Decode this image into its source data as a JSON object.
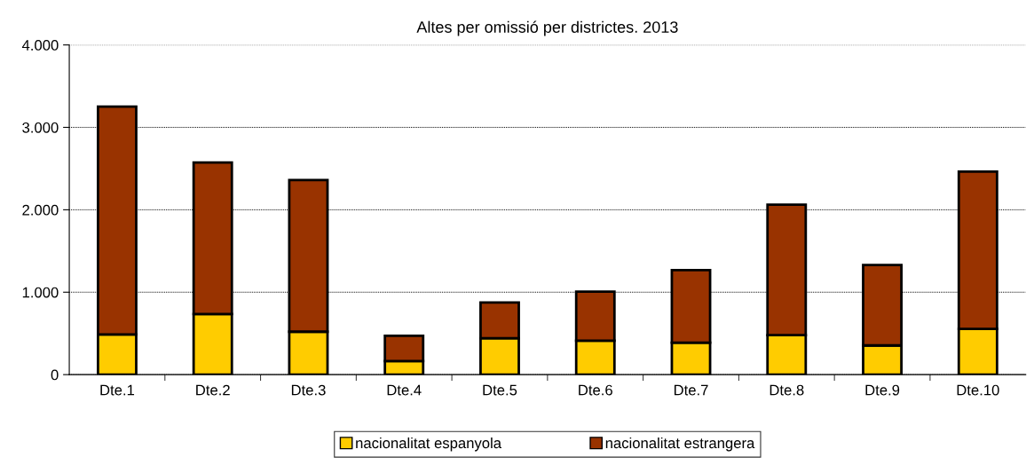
{
  "chart_data": {
    "type": "bar",
    "title": "Altes per omissió per districtes. 2013",
    "categories": [
      "Dte.1",
      "Dte.2",
      "Dte.3",
      "Dte.4",
      "Dte.5",
      "Dte.6",
      "Dte.7",
      "Dte.8",
      "Dte.9",
      "Dte.10"
    ],
    "stacked": true,
    "series": [
      {
        "name": "nacionalitat espanyola",
        "color": "#ffcc00",
        "values": [
          488,
          736,
          521,
          165,
          442,
          412,
          388,
          479,
          354,
          554
        ]
      },
      {
        "name": "nacionalitat estrangera",
        "color": "#993300",
        "values": [
          2764,
          1838,
          1839,
          306,
          434,
          596,
          879,
          1584,
          975,
          1909
        ]
      }
    ],
    "ylim": [
      0,
      4000
    ],
    "yticks": [
      {
        "value": 0,
        "label": "0"
      },
      {
        "value": 1000,
        "label": "1.000"
      },
      {
        "value": 2000,
        "label": "2.000"
      },
      {
        "value": 3000,
        "label": "3.000"
      },
      {
        "value": 4000,
        "label": "4.000"
      }
    ],
    "grid": "y",
    "legend": "bottom"
  }
}
